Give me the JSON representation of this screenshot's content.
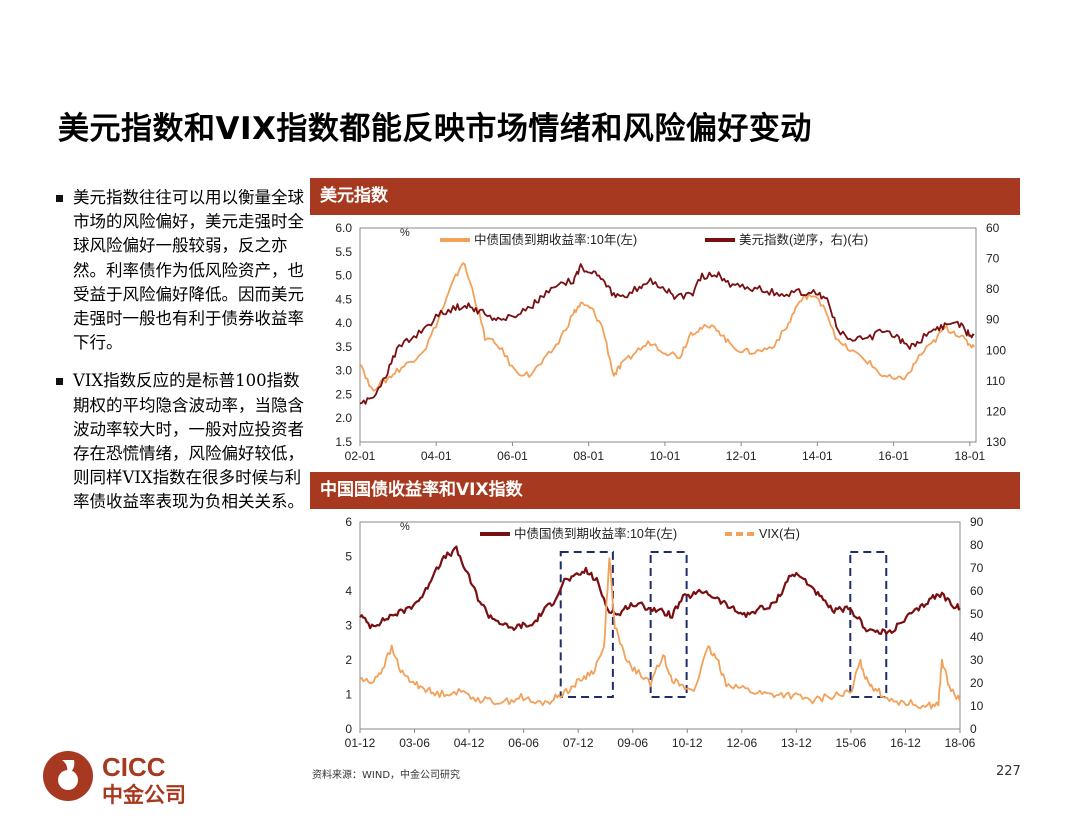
{
  "title": "美元指数和VIX指数都能反映市场情绪和风险偏好变动",
  "bullets": [
    "美元指数往往可以用以衡量全球市场的风险偏好，美元走强时全球风险偏好一般较弱，反之亦然。利率债作为低风险资产，也受益于风险偏好降低。因而美元走强时一般也有利于债券收益率下行。",
    "VIX指数反应的是标普100指数期权的平均隐含波动率，当隐含波动率较大时，一般对应投资者存在恐慌情绪，风险偏好较低，则同样VIX指数在很多时候与利率债收益率表现为负相关关系。"
  ],
  "panel1": {
    "header": "美元指数"
  },
  "panel2": {
    "header": "中国国债收益率和VIX指数"
  },
  "source": "资料来源：WIND，中金公司研究",
  "page_number": "227",
  "logo": {
    "latin": "CICC",
    "chinese": "中金公司"
  },
  "colors": {
    "header_bg": "#A6391F",
    "dark_red": "#7A0F12",
    "orange": "#F3A15A"
  },
  "chart_data": [
    {
      "type": "line",
      "left_unit": "%",
      "ylim_left": [
        1.5,
        6.0
      ],
      "yticks_left": [
        "6.0",
        "5.5",
        "5.0",
        "4.5",
        "4.0",
        "3.5",
        "3.0",
        "2.5",
        "2.0",
        "1.5"
      ],
      "ylim_right": [
        130,
        60
      ],
      "right_axis_inverted": true,
      "yticks_right": [
        "60",
        "70",
        "80",
        "90",
        "100",
        "110",
        "120",
        "130"
      ],
      "xlim": [
        2002.0,
        2018.75
      ],
      "xticks": [
        "02-01",
        "04-01",
        "06-01",
        "08-01",
        "10-01",
        "12-01",
        "14-01",
        "16-01",
        "18-01"
      ],
      "series": [
        {
          "name": "中债国债到期收益率:10年(左)",
          "axis": "left",
          "color": "#F3A15A",
          "x": [
            2002.0,
            2002.3,
            2002.7,
            2003.0,
            2003.4,
            2003.8,
            2004.2,
            2004.5,
            2004.8,
            2005.1,
            2005.4,
            2005.8,
            2006.2,
            2006.6,
            2007.0,
            2007.4,
            2007.8,
            2008.0,
            2008.3,
            2008.6,
            2008.9,
            2009.1,
            2009.5,
            2009.9,
            2010.3,
            2010.7,
            2011.0,
            2011.3,
            2011.7,
            2012.0,
            2012.4,
            2012.8,
            2013.2,
            2013.6,
            2013.9,
            2014.2,
            2014.6,
            2015.0,
            2015.4,
            2015.8,
            2016.2,
            2016.6,
            2016.9,
            2017.2,
            2017.6,
            2017.9,
            2018.2,
            2018.5,
            2018.7
          ],
          "y": [
            3.2,
            2.6,
            2.8,
            3.0,
            3.2,
            3.5,
            4.2,
            4.8,
            5.3,
            4.6,
            3.7,
            3.5,
            3.0,
            2.9,
            3.2,
            3.6,
            4.2,
            4.4,
            4.3,
            3.9,
            2.9,
            3.1,
            3.4,
            3.6,
            3.4,
            3.3,
            3.8,
            3.9,
            3.9,
            3.6,
            3.4,
            3.4,
            3.5,
            3.9,
            4.4,
            4.6,
            4.4,
            3.6,
            3.4,
            3.2,
            2.9,
            2.8,
            2.9,
            3.3,
            3.6,
            3.9,
            3.8,
            3.6,
            3.5
          ]
        },
        {
          "name": "美元指数(逆序，右)(右)",
          "axis": "right",
          "color": "#7A0F12",
          "x": [
            2002.0,
            2002.3,
            2002.7,
            2003.0,
            2003.4,
            2003.8,
            2004.2,
            2004.6,
            2004.9,
            2005.2,
            2005.6,
            2005.9,
            2006.3,
            2006.7,
            2007.0,
            2007.4,
            2007.8,
            2008.0,
            2008.3,
            2008.6,
            2008.9,
            2009.2,
            2009.6,
            2009.9,
            2010.3,
            2010.6,
            2011.0,
            2011.3,
            2011.7,
            2012.0,
            2012.4,
            2012.8,
            2013.2,
            2013.6,
            2014.0,
            2014.4,
            2014.7,
            2015.0,
            2015.4,
            2015.8,
            2016.2,
            2016.6,
            2016.9,
            2017.2,
            2017.6,
            2017.9,
            2018.2,
            2018.5,
            2018.7
          ],
          "y": [
            118,
            116,
            108,
            100,
            96,
            92,
            88,
            86,
            85,
            87,
            89,
            90,
            88,
            85,
            82,
            79,
            77,
            73,
            74,
            76,
            82,
            83,
            79,
            77,
            80,
            83,
            82,
            76,
            75,
            78,
            79,
            80,
            81,
            82,
            81,
            81,
            83,
            94,
            97,
            96,
            94,
            96,
            99,
            97,
            93,
            92,
            90,
            94,
            95
          ]
        }
      ]
    },
    {
      "type": "line",
      "left_unit": "%",
      "ylim_left": [
        0,
        6
      ],
      "yticks_left": [
        "6",
        "5",
        "4",
        "3",
        "2",
        "1",
        "0"
      ],
      "ylim_right": [
        0,
        90
      ],
      "yticks_right": [
        "90",
        "80",
        "70",
        "60",
        "50",
        "40",
        "30",
        "20",
        "10",
        "0"
      ],
      "xlim": [
        2001.92,
        2018.6
      ],
      "xticks": [
        "01-12",
        "03-06",
        "04-12",
        "06-06",
        "07-12",
        "09-06",
        "10-12",
        "12-06",
        "13-12",
        "15-06",
        "16-12",
        "18-06"
      ],
      "series": [
        {
          "name": "中债国债到期收益率:10年(左)",
          "axis": "left",
          "color": "#7A0F12",
          "x": [
            2001.92,
            2002.2,
            2002.5,
            2002.8,
            2003.1,
            2003.4,
            2003.7,
            2004.0,
            2004.3,
            2004.6,
            2004.9,
            2005.2,
            2005.5,
            2005.8,
            2006.1,
            2006.4,
            2006.7,
            2007.0,
            2007.3,
            2007.6,
            2007.9,
            2008.2,
            2008.5,
            2008.8,
            2009.1,
            2009.4,
            2009.7,
            2010.0,
            2010.3,
            2010.6,
            2010.9,
            2011.2,
            2011.5,
            2011.8,
            2012.1,
            2012.4,
            2012.7,
            2013.0,
            2013.3,
            2013.6,
            2013.9,
            2014.2,
            2014.5,
            2014.8,
            2015.1,
            2015.4,
            2015.7,
            2016.0,
            2016.3,
            2016.6,
            2016.9,
            2017.2,
            2017.5,
            2017.8,
            2018.1,
            2018.4,
            2018.6
          ],
          "y": [
            3.3,
            3.0,
            3.1,
            3.3,
            3.4,
            3.6,
            3.9,
            4.6,
            5.0,
            5.2,
            4.5,
            3.8,
            3.3,
            3.1,
            2.9,
            3.0,
            3.0,
            3.4,
            3.7,
            4.3,
            4.4,
            4.6,
            4.3,
            3.5,
            3.3,
            3.6,
            3.6,
            3.5,
            3.4,
            3.3,
            3.8,
            3.9,
            4.0,
            3.8,
            3.6,
            3.4,
            3.3,
            3.5,
            3.5,
            3.9,
            4.5,
            4.4,
            4.1,
            3.7,
            3.4,
            3.5,
            3.3,
            2.9,
            2.8,
            2.8,
            3.0,
            3.3,
            3.5,
            3.8,
            3.9,
            3.6,
            3.5
          ]
        },
        {
          "name": "VIX(右)",
          "axis": "right",
          "color": "#F3A15A",
          "x": [
            2001.92,
            2002.2,
            2002.5,
            2002.8,
            2003.1,
            2003.4,
            2003.7,
            2004.0,
            2004.4,
            2004.8,
            2005.2,
            2005.6,
            2006.0,
            2006.4,
            2006.8,
            2007.2,
            2007.5,
            2007.8,
            2008.1,
            2008.4,
            2008.7,
            2008.85,
            2009.0,
            2009.3,
            2009.6,
            2010.0,
            2010.35,
            2010.6,
            2010.9,
            2011.2,
            2011.6,
            2011.85,
            2012.1,
            2012.5,
            2012.9,
            2013.3,
            2013.7,
            2014.1,
            2014.5,
            2014.9,
            2015.3,
            2015.6,
            2015.8,
            2016.0,
            2016.2,
            2016.5,
            2016.9,
            2017.3,
            2017.7,
            2018.0,
            2018.1,
            2018.3,
            2018.6
          ],
          "y": [
            22,
            20,
            25,
            35,
            24,
            20,
            18,
            15,
            16,
            16,
            13,
            12,
            12,
            14,
            11,
            12,
            15,
            18,
            22,
            25,
            35,
            75,
            45,
            30,
            25,
            20,
            32,
            22,
            18,
            17,
            35,
            30,
            20,
            18,
            16,
            15,
            15,
            14,
            12,
            14,
            15,
            16,
            30,
            22,
            18,
            14,
            12,
            11,
            10,
            11,
            30,
            18,
            12
          ]
        }
      ],
      "dashed_boxes_x": [
        [
          2007.5,
          2008.95
        ],
        [
          2010.0,
          2011.0
        ],
        [
          2015.55,
          2016.55
        ]
      ]
    }
  ]
}
